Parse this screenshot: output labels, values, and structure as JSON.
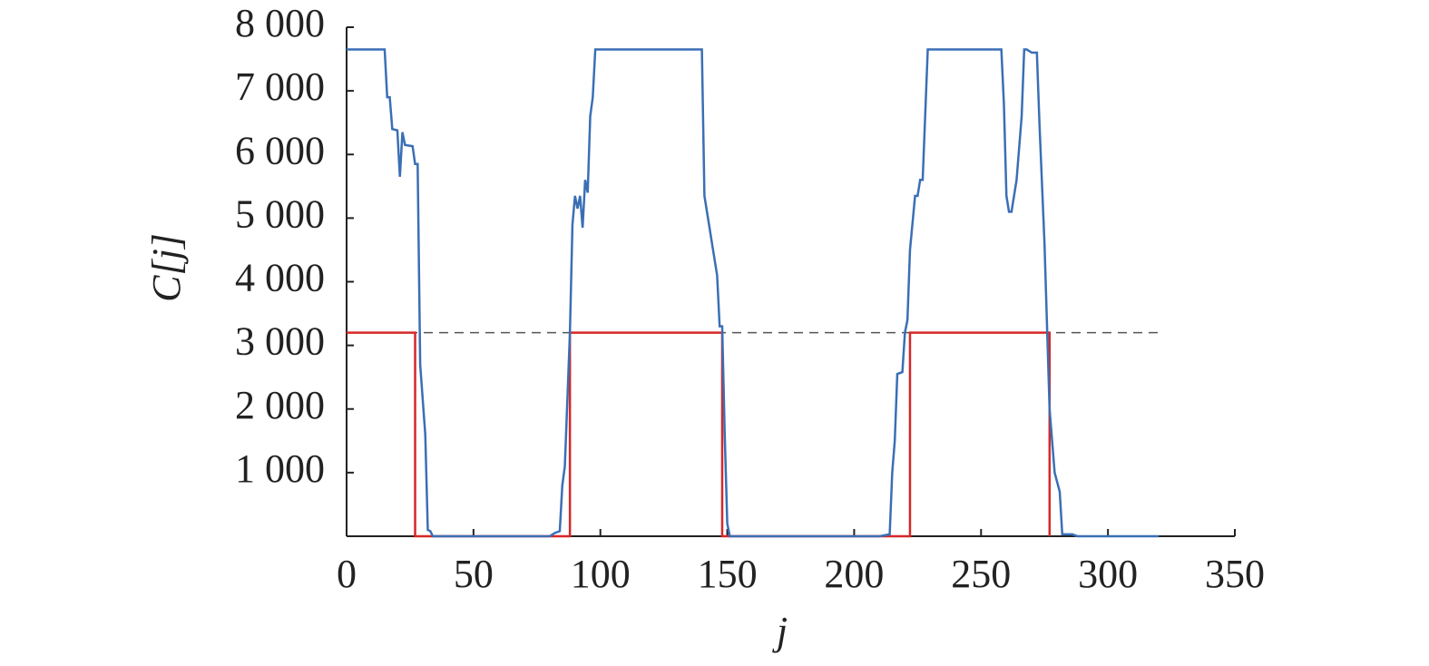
{
  "chart_data": {
    "type": "line",
    "xlabel": "j",
    "ylabel": "C[j]",
    "xlim": [
      0,
      350
    ],
    "xticks": [
      0,
      50,
      100,
      150,
      200,
      250,
      300,
      350
    ],
    "ylim": [
      0,
      8000
    ],
    "yticks": [
      {
        "value": 1000,
        "label": "1 000"
      },
      {
        "value": 2000,
        "label": "2 000"
      },
      {
        "value": 3000,
        "label": "3 000"
      },
      {
        "value": 4000,
        "label": "4 000"
      },
      {
        "value": 5000,
        "label": "5 000"
      },
      {
        "value": 6000,
        "label": "6 000"
      },
      {
        "value": 7000,
        "label": "7 000"
      },
      {
        "value": 8000,
        "label": "8 000"
      }
    ],
    "grid": false,
    "series": [
      {
        "color": "#3a6fb5",
        "dash": false,
        "x": [
          0,
          15,
          16,
          17,
          18,
          20,
          21,
          22,
          23,
          26,
          27,
          28,
          29,
          31,
          32,
          33,
          34,
          80,
          82,
          84,
          85,
          86,
          88,
          89,
          90,
          91,
          92,
          93,
          94,
          95,
          96,
          97,
          98,
          140,
          141,
          146,
          147,
          148,
          149,
          150,
          151,
          210,
          214,
          215,
          216,
          217,
          219,
          220,
          221,
          222,
          224,
          225,
          226,
          227,
          229,
          258,
          259,
          260,
          261,
          262,
          264,
          266,
          267,
          268,
          270,
          272,
          273,
          275,
          277,
          279,
          281,
          282,
          286,
          288,
          320
        ],
        "values": [
          7650,
          7650,
          6900,
          6900,
          6400,
          6380,
          5650,
          6350,
          6150,
          6130,
          5850,
          5850,
          2700,
          1600,
          100,
          80,
          0,
          0,
          50,
          80,
          800,
          1100,
          3200,
          4900,
          5350,
          5150,
          5350,
          4850,
          5600,
          5400,
          6600,
          6900,
          7650,
          7650,
          5350,
          4100,
          3300,
          3300,
          1600,
          200,
          0,
          0,
          30,
          1000,
          1500,
          2550,
          2580,
          3200,
          3400,
          4500,
          5350,
          5350,
          5600,
          5600,
          7650,
          7650,
          6800,
          5350,
          5100,
          5100,
          5600,
          6600,
          7650,
          7650,
          7600,
          7600,
          6500,
          4600,
          2000,
          1000,
          700,
          30,
          30,
          0,
          0
        ]
      },
      {
        "color": "#d62728",
        "dash": false,
        "x": [
          0,
          27,
          27,
          88,
          88,
          148,
          148,
          222,
          222,
          277,
          277
        ],
        "values": [
          3200,
          3200,
          0,
          0,
          3200,
          3200,
          0,
          0,
          3200,
          3200,
          0
        ]
      },
      {
        "color": "#555555",
        "dash": true,
        "x": [
          0,
          320
        ],
        "values": [
          3200,
          3200
        ]
      }
    ]
  }
}
